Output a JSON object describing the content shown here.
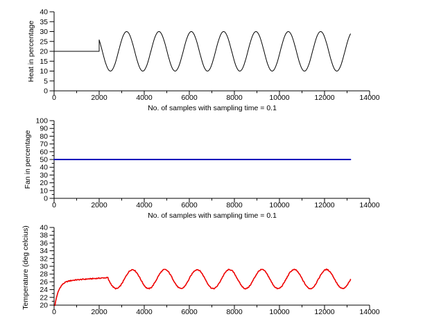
{
  "figure": {
    "background": "#ffffff",
    "axis_color": "#000000",
    "tick_label_color": "#000000"
  },
  "chart_data": [
    {
      "id": "heat",
      "type": "line",
      "title": "",
      "ylabel": "Heat in percentage",
      "xlabel": "No. of samples with sampling time = 0.1",
      "xlim": [
        0,
        14000
      ],
      "ylim": [
        0,
        40
      ],
      "xticks": [
        0,
        2000,
        4000,
        6000,
        8000,
        10000,
        12000,
        14000
      ],
      "xminor_step": 1000,
      "yticks": [
        0,
        5,
        10,
        15,
        20,
        25,
        30,
        35,
        40
      ],
      "yminor_step": null,
      "grid": false,
      "legend": null,
      "line": {
        "color": "#000000",
        "width": 1
      },
      "noise": 0,
      "series_segments": [
        {
          "kind": "const",
          "x_start": 0,
          "x_end": 2000,
          "y": 20
        },
        {
          "kind": "cosine",
          "x_start": 2000,
          "x_end": 13150,
          "mean": 20,
          "amplitude": 10,
          "period": 1435,
          "trough_x": 2500
        }
      ],
      "summary": "Constant 20% until sample 2000, step up then oscillates between 10% and 30% (period ~1435 samples) through sample ~13150"
    },
    {
      "id": "fan",
      "type": "line",
      "title": "",
      "ylabel": "Fan in percentage",
      "xlabel": "No. of samples with sampling time = 0.1",
      "xlim": [
        0,
        14000
      ],
      "ylim": [
        0,
        100
      ],
      "xticks": [
        0,
        2000,
        4000,
        6000,
        8000,
        10000,
        12000,
        14000
      ],
      "xminor_step": 1000,
      "yticks": [
        0,
        10,
        20,
        30,
        40,
        50,
        60,
        70,
        80,
        90,
        100
      ],
      "yminor_step": 5,
      "grid": false,
      "legend": null,
      "line": {
        "color": "#0000bb",
        "width": 2
      },
      "noise": 0,
      "series_segments": [
        {
          "kind": "const",
          "x_start": 0,
          "x_end": 13150,
          "y": 50
        }
      ],
      "summary": "Constant 50% from sample 0 to ~13150"
    },
    {
      "id": "temperature",
      "type": "line",
      "title": "",
      "ylabel": "Temperature (deg celcius)",
      "xlabel": "",
      "xlim": [
        0,
        14000
      ],
      "ylim": [
        20,
        40
      ],
      "xticks": [
        0,
        2000,
        4000,
        6000,
        8000,
        10000,
        12000,
        14000
      ],
      "xminor_step": 1000,
      "yticks": [
        20,
        22,
        24,
        26,
        28,
        30,
        32,
        34,
        36,
        38,
        40
      ],
      "yminor_step": 1,
      "grid": false,
      "legend": null,
      "line": {
        "color": "#ee0000",
        "width": 1.6
      },
      "noise": 0.13,
      "series_segments": [
        {
          "kind": "exp_rise",
          "x_start": 40,
          "x_end": 2400,
          "y_start": 20,
          "y_asymptote": 26.15,
          "tau": 180,
          "drift": 0.0004
        },
        {
          "kind": "cosine",
          "x_start": 2400,
          "x_end": 13150,
          "mean": 26.7,
          "amplitude": 2.45,
          "period": 1435,
          "trough_x": 2760
        }
      ],
      "summary": "Noisy rise from 20 to ~27 deg by sample ~2300, then oscillates between ~24.3 and ~29.2 deg (period ~1435 samples) through sample ~13150"
    }
  ]
}
